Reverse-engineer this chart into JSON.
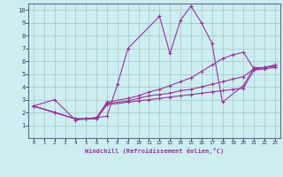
{
  "xlabel": "Windchill (Refroidissement éolien,°C)",
  "bg_color": "#cceef0",
  "line_color": "#993399",
  "grid_color": "#aacccc",
  "xlim": [
    -0.5,
    23.5
  ],
  "ylim": [
    0,
    10.5
  ],
  "xticks": [
    0,
    1,
    2,
    3,
    4,
    5,
    6,
    7,
    8,
    9,
    10,
    11,
    12,
    13,
    14,
    15,
    16,
    17,
    18,
    19,
    20,
    21,
    22,
    23
  ],
  "yticks": [
    1,
    2,
    3,
    4,
    5,
    6,
    7,
    8,
    9,
    10
  ],
  "lines": [
    {
      "x": [
        0,
        2,
        4,
        5,
        6,
        7,
        8,
        9,
        12,
        13,
        14,
        15,
        16,
        17,
        18,
        20,
        21,
        22,
        23
      ],
      "y": [
        2.5,
        3.0,
        1.4,
        1.5,
        1.6,
        1.7,
        4.2,
        7.0,
        9.5,
        6.6,
        9.2,
        10.3,
        9.0,
        7.4,
        2.8,
        4.1,
        5.5,
        5.5,
        5.7
      ]
    },
    {
      "x": [
        0,
        2,
        4,
        5,
        6,
        7,
        9,
        10,
        11,
        12,
        13,
        14,
        15,
        16,
        17,
        18,
        19,
        20,
        21,
        22,
        23
      ],
      "y": [
        2.5,
        2.0,
        1.5,
        1.5,
        1.6,
        2.8,
        3.1,
        3.3,
        3.6,
        3.8,
        4.1,
        4.4,
        4.7,
        5.2,
        5.7,
        6.2,
        6.5,
        6.7,
        5.4,
        5.5,
        5.7
      ]
    },
    {
      "x": [
        0,
        2,
        4,
        5,
        6,
        7,
        9,
        10,
        11,
        12,
        13,
        14,
        15,
        16,
        17,
        18,
        19,
        20,
        21,
        22,
        23
      ],
      "y": [
        2.5,
        2.0,
        1.5,
        1.5,
        1.5,
        2.7,
        2.9,
        3.1,
        3.3,
        3.4,
        3.5,
        3.7,
        3.8,
        4.0,
        4.2,
        4.4,
        4.6,
        4.8,
        5.4,
        5.5,
        5.6
      ]
    },
    {
      "x": [
        0,
        2,
        4,
        5,
        6,
        7,
        9,
        10,
        11,
        12,
        13,
        14,
        15,
        16,
        17,
        18,
        19,
        20,
        21,
        22,
        23
      ],
      "y": [
        2.5,
        2.0,
        1.5,
        1.5,
        1.5,
        2.6,
        2.8,
        2.9,
        3.0,
        3.1,
        3.2,
        3.3,
        3.4,
        3.5,
        3.6,
        3.7,
        3.8,
        3.9,
        5.3,
        5.4,
        5.5
      ]
    }
  ]
}
